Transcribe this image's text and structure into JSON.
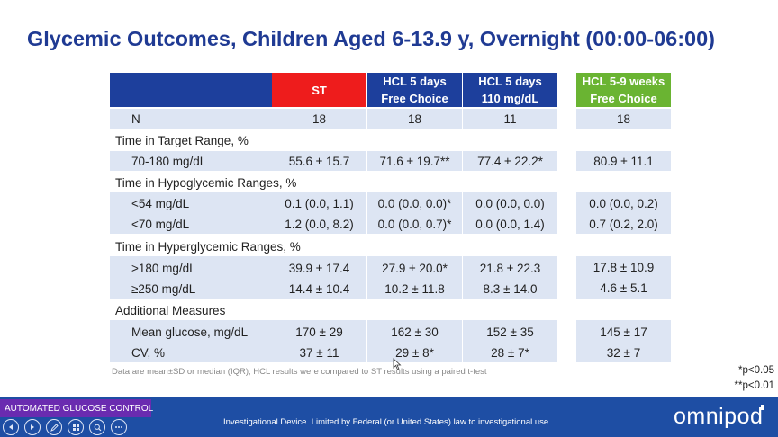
{
  "title": "Glycemic Outcomes, Children Aged 6-13.9 y, Overnight (00:00-06:00)",
  "headers": {
    "st": "ST",
    "hcl5free_l1": "HCL 5 days",
    "hcl5free_l2": "Free Choice",
    "hcl5_110_l1": "HCL 5 days",
    "hcl5_110_l2": "110 mg/dL",
    "hcl59_l1": "HCL 5-9 weeks",
    "hcl59_l2": "Free Choice"
  },
  "colors": {
    "header_blue": "#1d3f9c",
    "st_red": "#ee1c1c",
    "green": "#6ab432",
    "row_shade": "#dde5f3",
    "title": "#1f3a93",
    "footer": "#1e4ea4",
    "badge": "#6a2bb0"
  },
  "rows": {
    "n": {
      "label": "N",
      "st": "18",
      "c2": "18",
      "c3": "11",
      "c4": "18"
    },
    "tir_heading": "Time in Target Range, %",
    "tir": {
      "label": "70-180 mg/dL",
      "st": "55.6 ± 15.7",
      "c2": "71.6 ± 19.7**",
      "c3": "77.4 ± 22.2*",
      "c4": "80.9 ± 11.1"
    },
    "hypo_heading": "Time in Hypoglycemic Ranges, %",
    "lt54": {
      "label": "<54 mg/dL",
      "st": "0.1 (0.0, 1.1)",
      "c2": "0.0 (0.0, 0.0)*",
      "c3": "0.0 (0.0, 0.0)",
      "c4": "0.0 (0.0, 0.2)"
    },
    "lt70": {
      "label": "<70 mg/dL",
      "st": "1.2 (0.0, 8.2)",
      "c2": "0.0 (0.0, 0.7)*",
      "c3": "0.0 (0.0, 1.4)",
      "c4": "0.7 (0.2, 2.0)"
    },
    "hyper_heading": "Time in Hyperglycemic Ranges, %",
    "gt180": {
      "label": ">180 mg/dL",
      "st": "39.9 ± 17.4",
      "c2": "27.9 ± 20.0*",
      "c3": "21.8 ± 22.3",
      "c4": "17.8 ± 10.9"
    },
    "ge250": {
      "label": "≥250 mg/dL",
      "st": "14.4 ± 10.4",
      "c2": "10.2 ± 11.8",
      "c3": "8.3 ± 14.0",
      "c4": "4.6 ± 5.1"
    },
    "add_heading": "Additional Measures",
    "mean": {
      "label": "Mean glucose, mg/dL",
      "st": "170 ± 29",
      "c2": "162 ± 30",
      "c3": "152 ± 35",
      "c4": "145 ± 17"
    },
    "cv": {
      "label": "CV, %",
      "st": "37 ± 11",
      "c2": "29 ± 8*",
      "c3": "28 ± 7*",
      "c4": "32 ± 7"
    }
  },
  "footnote": "Data are mean±SD or median (IQR); HCL results were compared to ST results using a paired t-test",
  "p05": "*p<0.05",
  "p01": "**p<0.01",
  "badge": "AUTOMATED GLUCOSE CONTROL",
  "disclaimer": "Investigational Device. Limited by Federal (or United States) law to investigational use.",
  "logo": "omnipod",
  "player_icons": [
    "prev-icon",
    "next-icon",
    "pen-icon",
    "slides-icon",
    "zoom-icon",
    "more-icon"
  ]
}
